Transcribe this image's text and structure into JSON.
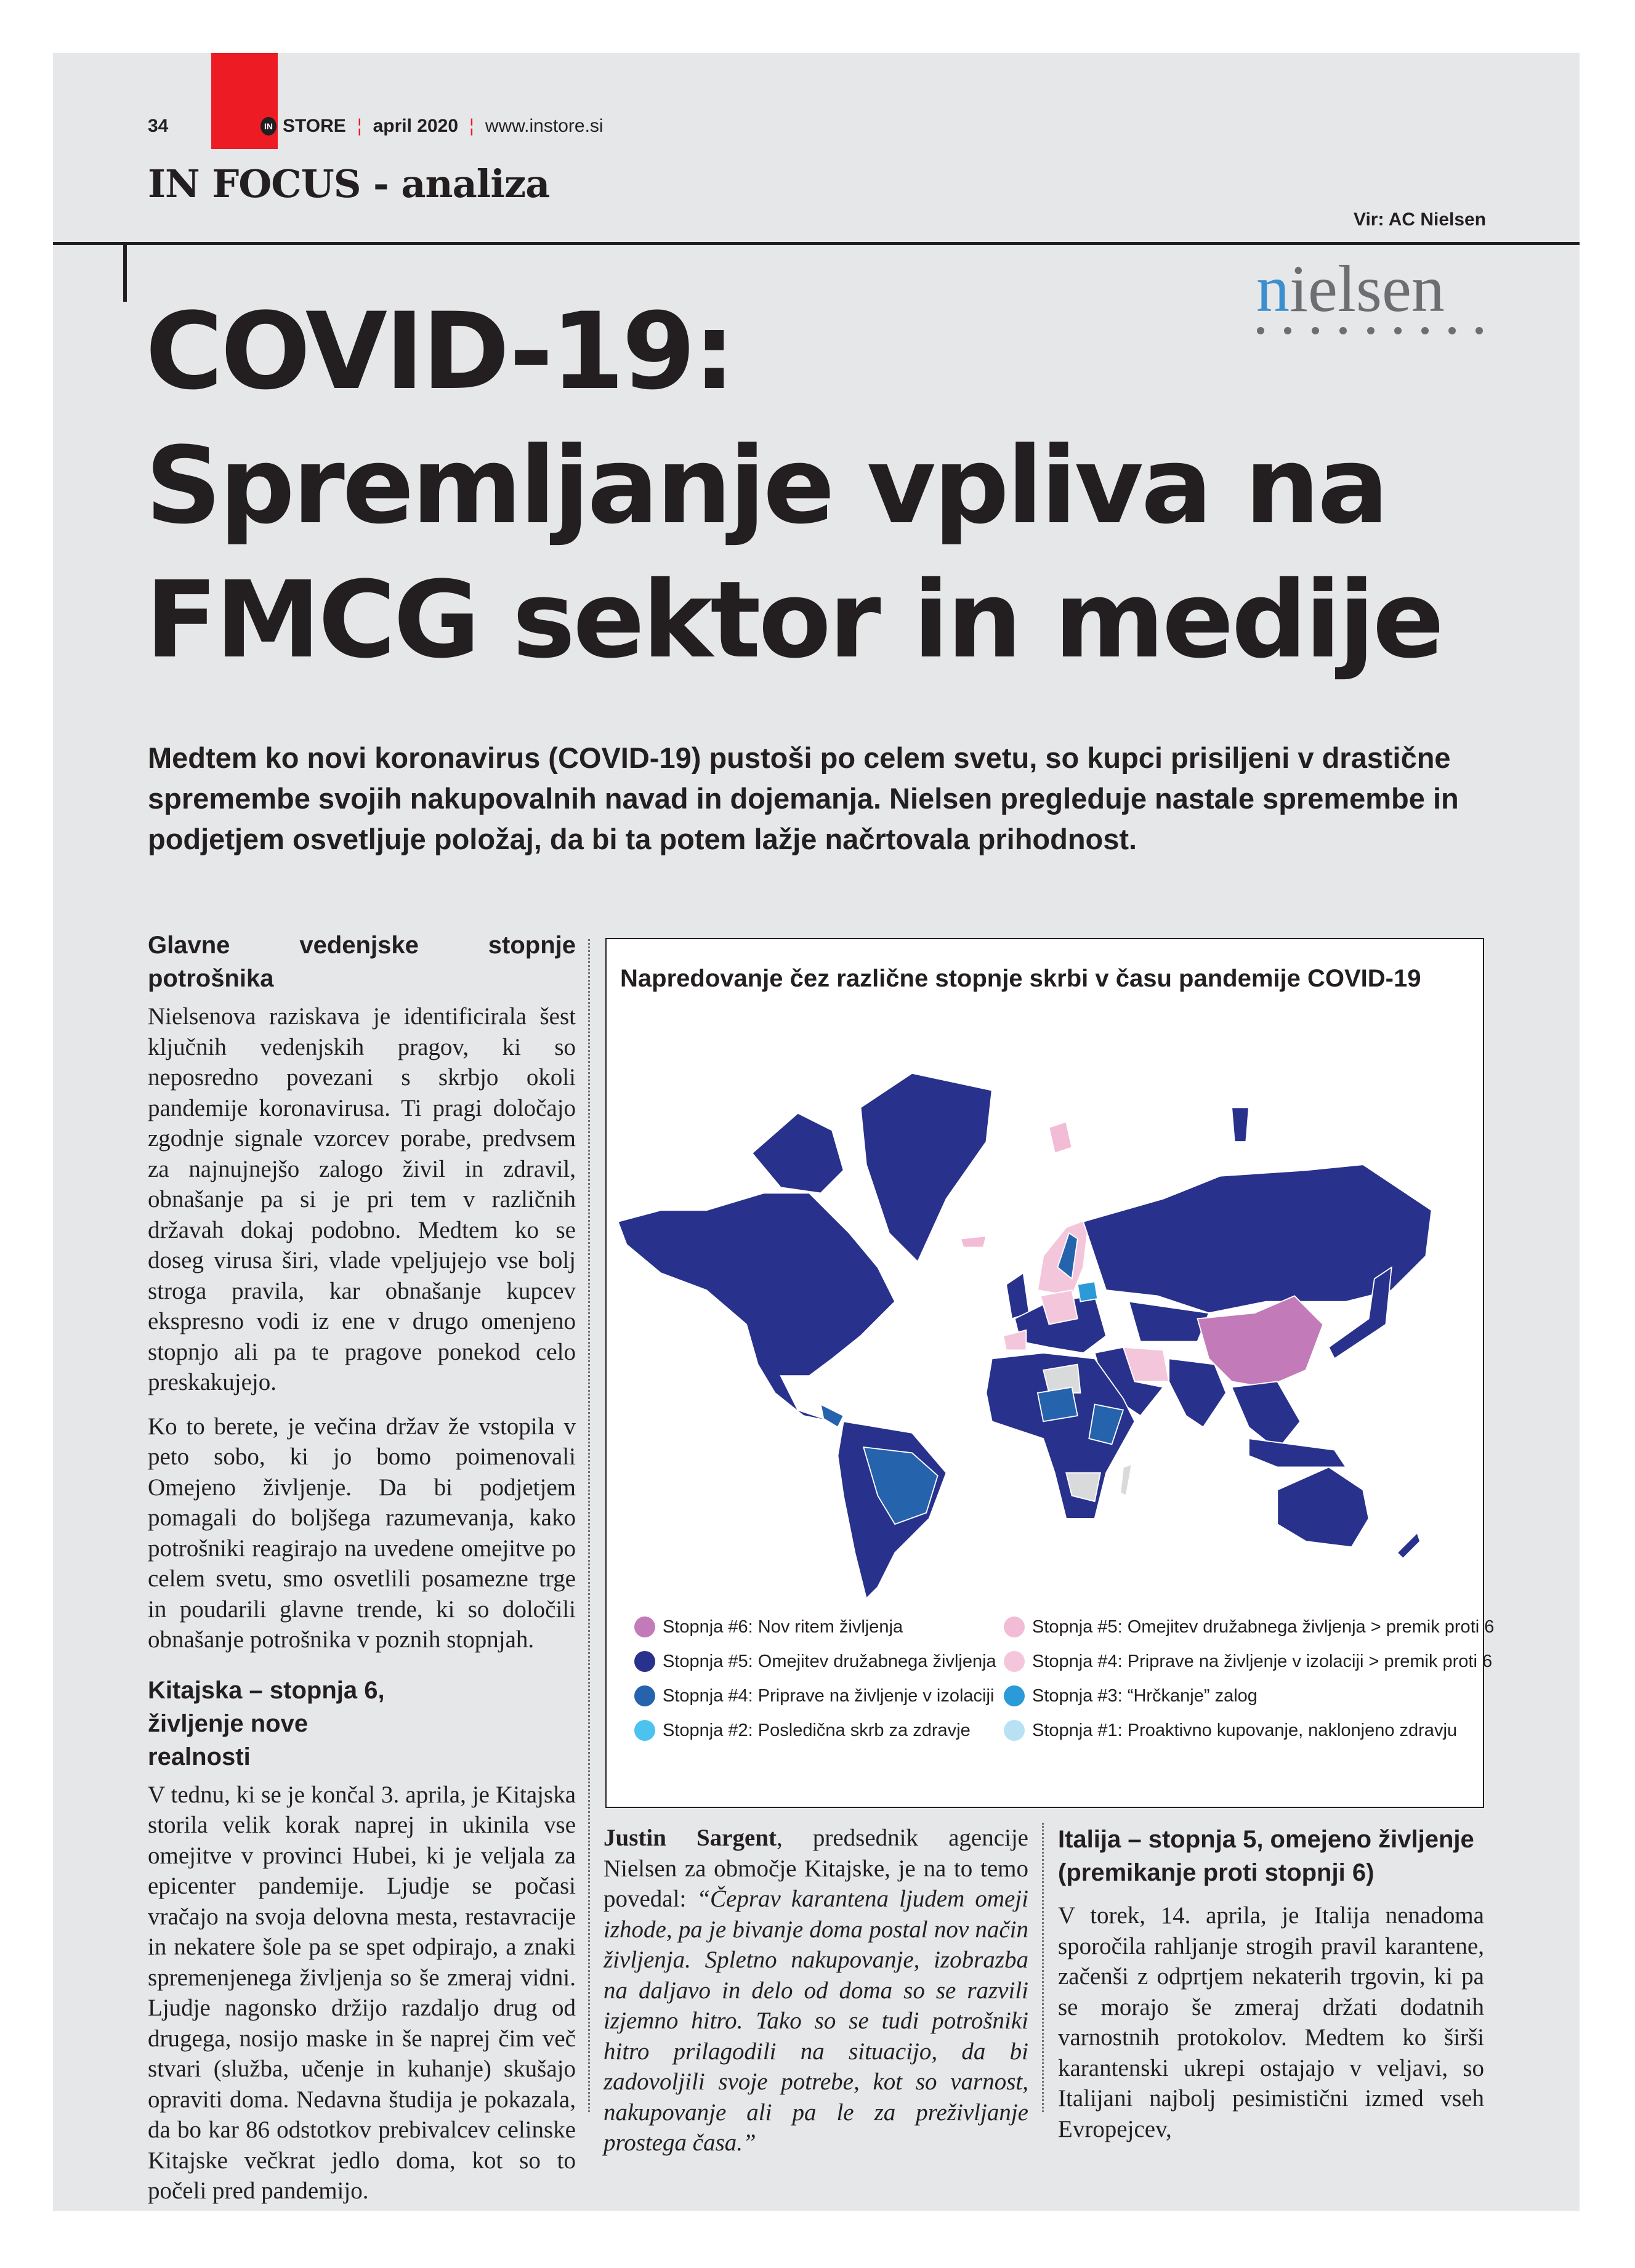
{
  "header": {
    "page_number": "34",
    "brand_badge": "IN",
    "brand": "STORE",
    "issue": "april 2020",
    "website": "www.instore.si",
    "section": "IN FOCUS - analiza",
    "source": "Vir: AC Nielsen",
    "logo_text": "nielsen"
  },
  "article": {
    "title_lines": [
      "COVID-19:",
      "Spremljanje vpliva na",
      "FMCG sektor in medije"
    ],
    "intro": "Medtem ko novi koronavirus (COVID-19) pustoši po celem svetu, so kupci prisiljeni v drastične spremembe svojih nakupovalnih navad in dojemanja. Nielsen pregleduje nastale spremembe in podjetjem osvetljuje položaj, da bi ta potem lažje načrtovala prihodnost.",
    "sections": [
      {
        "heading": "Glavne vedenjske stopnje potrošnika",
        "paragraphs": [
          "Nielsenova raziskava je identificirala šest ključnih vedenjskih pragov, ki so neposredno povezani s skrbjo okoli pandemije koronavirusa. Ti pragi določajo zgodnje signale vzorcev porabe, predvsem za najnujnejšo zalogo živil in zdravil, obnašanje pa si je pri tem v različnih državah dokaj podobno. Medtem ko se doseg virusa širi, vlade vpeljujejo vse bolj stroga pravila, kar obnašanje kupcev ekspresno vodi iz ene v drugo omenjeno stopnjo ali pa te pragove ponekod celo preskakujejo.",
          "Ko to berete, je večina držav že vstopila v peto sobo, ki jo bomo poimenovali Omejeno življenje. Da bi podjetjem pomagali do boljšega razumevanja, kako potrošniki reagirajo na uvedene omejitve po celem svetu, smo osvetlili posamezne trge in poudarili glavne trende, ki so določili obnašanje potrošnika v poznih stopnjah."
        ]
      },
      {
        "heading": "Kitajska – stopnja 6, življenje nove realnosti",
        "paragraphs": [
          "V tednu, ki se je končal 3. aprila, je Kitajska storila velik korak naprej in ukinila vse omejitve v provinci Hubei, ki je veljala za epicenter pandemije. Ljudje se počasi vračajo na svoja delovna mesta, restavracije in nekatere šole pa se spet odpirajo, a znaki spremenjenega življenja so še zmeraj vidni. Ljudje nagonsko držijo razdaljo drug od drugega, nosijo maske in še naprej čim več stvari (služba, učenje in kuhanje) skušajo opraviti doma. Nedavna študija je pokazala, da bo kar 86 odstotkov prebivalcev celinske Kitajske večkrat jedlo doma, kot so to počeli pred pandemijo."
        ]
      }
    ],
    "quote": {
      "speaker": "Justin Sargent",
      "intro": ", predsednik agencije Nielsen za območje Kitajske, je na to temo povedal: ",
      "text": "“Čeprav karantena ljudem omeji izhode, pa je bivanje doma postal nov način življenja. Spletno nakupovanje, izobrazba na daljavo in delo od doma so se razvili izjemno hitro. Tako so se tudi potrošniki hitro prilagodili na situacijo, da bi zadovoljili svoje potrebe, kot so varnost, nakupovanje ali pa le za preživljanje prostega časa.”"
    },
    "italy": {
      "heading": "Italija – stopnja 5, omejeno življenje (premikanje proti stopnji 6)",
      "text": "V torek, 14. aprila, je Italija nenadoma sporočila rahljanje strogih pravil karantene, začenši z odprtjem nekaterih trgovin, ki pa se morajo še zmeraj držati dodatnih varnostnih protokolov. Medtem ko širši karantenski ukrepi ostajajo v veljavi, so Italijani najbolj pesimistični izmed vseh Evropejcev,"
    }
  },
  "map": {
    "title": "Napredovanje čez različne stopnje skrbi v času pandemije COVID-19",
    "legend": [
      {
        "label": "Stopnja #6: Nov ritem življenja",
        "color": "#c27bb8"
      },
      {
        "label": "Stopnja #5: Omejitev družabnega življenja > premik proti 6",
        "color": "#f2bcd6"
      },
      {
        "label": "Stopnja #5: Omejitev družabnega življenja",
        "color": "#28318c"
      },
      {
        "label": "Stopnja #4: Priprave na življenje v izolaciji > premik proti 6",
        "color": "#f4c6dc"
      },
      {
        "label": "Stopnja #4: Priprave na življenje v izolaciji",
        "color": "#2563ad"
      },
      {
        "label": "Stopnja #3: “Hrčkanje” zalog",
        "color": "#2a9ad8"
      },
      {
        "label": "Stopnja #2: Posledična skrb za zdravje",
        "color": "#4cc3ee"
      },
      {
        "label": "Stopnja #1: Proaktivno kupovanje, naklonjeno zdravju",
        "color": "#b8e2f4"
      }
    ],
    "no_data_color": "#d9dadb"
  }
}
